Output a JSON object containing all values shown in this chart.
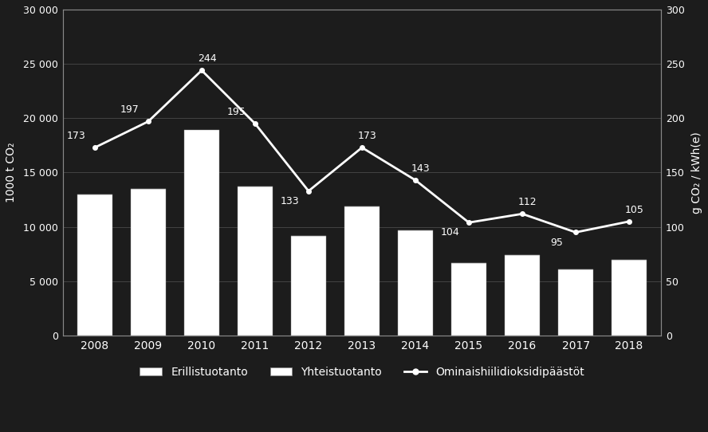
{
  "years": [
    2008,
    2009,
    2010,
    2011,
    2012,
    2013,
    2014,
    2015,
    2016,
    2017,
    2018
  ],
  "erillistuotanto": [
    13000,
    13500,
    0,
    13700,
    9200,
    11900,
    9700,
    6700,
    7400,
    6100,
    7000
  ],
  "yhteistuotanto": [
    0,
    0,
    18900,
    0,
    0,
    0,
    0,
    0,
    0,
    0,
    0
  ],
  "line_values": [
    173,
    197,
    244,
    195,
    133,
    173,
    143,
    104,
    112,
    95,
    105
  ],
  "background_color": "#1c1c1c",
  "bar_color_erillis": "#ffffff",
  "bar_color_yhteis": "#ffffff",
  "line_color": "#ffffff",
  "text_color": "#ffffff",
  "grid_color": "#4a4a4a",
  "ylabel_left": "1000 t CO₂",
  "ylabel_right": "g CO₂ / kWh(e)",
  "ylim_left": [
    0,
    30000
  ],
  "ylim_right": [
    0,
    300
  ],
  "yticks_left": [
    0,
    5000,
    10000,
    15000,
    20000,
    25000,
    30000
  ],
  "yticks_right": [
    0,
    50,
    100,
    150,
    200,
    250,
    300
  ],
  "ytick_labels_left": [
    "0",
    "5 000",
    "10 000",
    "15 000",
    "20 000",
    "25 000",
    "30 000"
  ],
  "legend_erillis": "Erillistuotanto",
  "legend_yhteis": "Yhteistuotanto",
  "legend_line": "Ominaishiilidioksidipäästöt",
  "annot_dx": [
    -0.35,
    -0.35,
    0.1,
    -0.35,
    -0.35,
    0.1,
    0.1,
    -0.35,
    0.1,
    -0.35,
    0.1
  ],
  "annot_dy": [
    6,
    6,
    6,
    6,
    -14,
    6,
    6,
    -14,
    6,
    -14,
    6
  ]
}
